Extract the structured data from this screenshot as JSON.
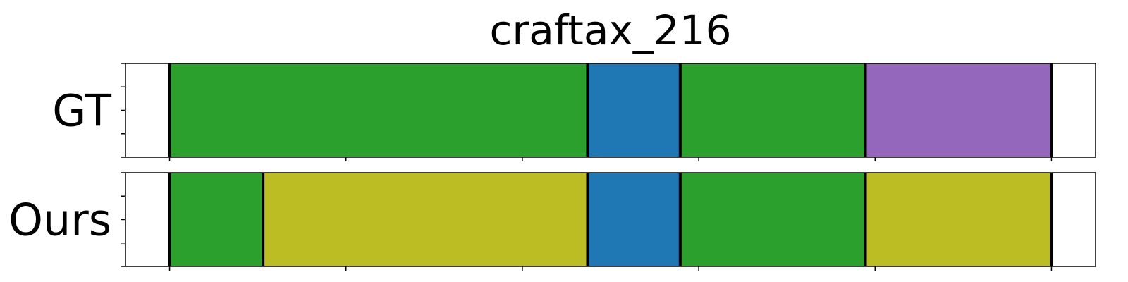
{
  "chart_data": {
    "type": "segmentation-timeline",
    "title": "craftax_216",
    "xlim": [
      0,
      1100
    ],
    "rows": [
      {
        "label": "GT",
        "segments": [
          {
            "start": 50,
            "end": 524,
            "color": "#2ca02c"
          },
          {
            "start": 524,
            "end": 629,
            "color": "#1f77b4"
          },
          {
            "start": 629,
            "end": 839,
            "color": "#2ca02c"
          },
          {
            "start": 839,
            "end": 1050,
            "color": "#9467bd"
          }
        ],
        "boundaries": [
          50,
          524,
          629,
          839,
          1050
        ]
      },
      {
        "label": "Ours",
        "segments": [
          {
            "start": 50,
            "end": 156,
            "color": "#2ca02c"
          },
          {
            "start": 156,
            "end": 524,
            "color": "#bcbd22"
          },
          {
            "start": 524,
            "end": 629,
            "color": "#1f77b4"
          },
          {
            "start": 629,
            "end": 839,
            "color": "#2ca02c"
          },
          {
            "start": 839,
            "end": 1050,
            "color": "#bcbd22"
          }
        ],
        "boundaries": [
          50,
          156,
          524,
          629,
          839,
          1050
        ]
      }
    ],
    "x_ticks": [
      50,
      250,
      450,
      650,
      850,
      1050
    ],
    "y_ticks_per_row": 5,
    "tick_labels_visible": false,
    "grid": false,
    "legend": "none"
  }
}
